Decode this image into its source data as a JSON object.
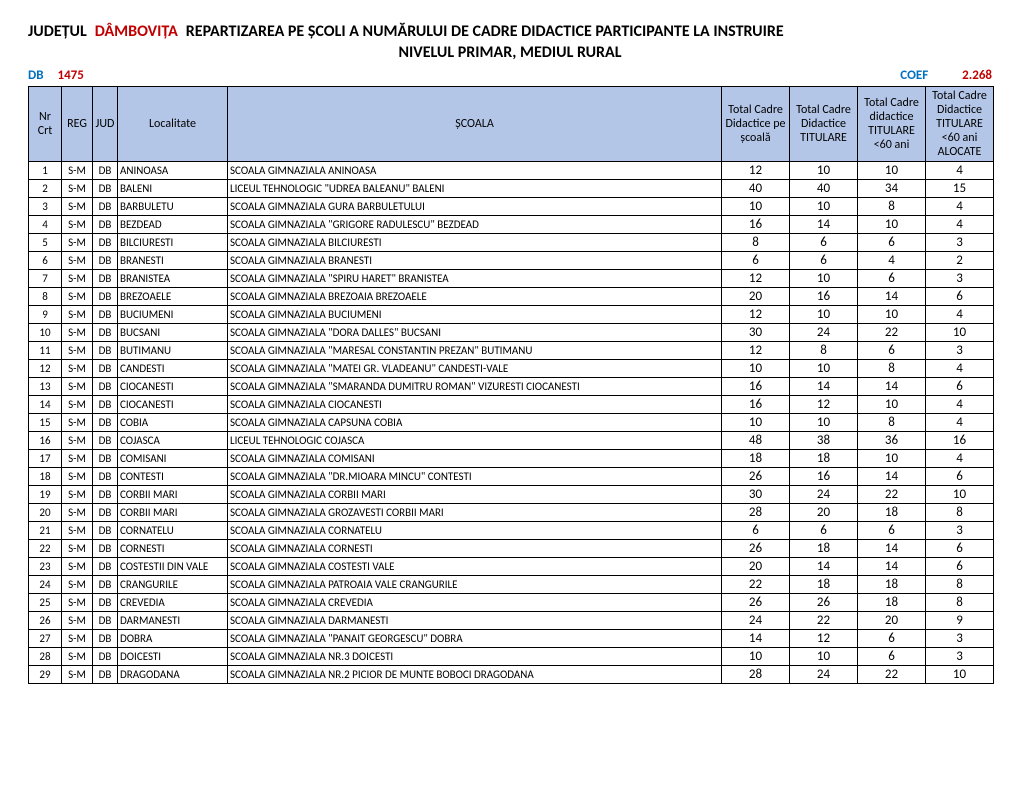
{
  "header": {
    "judetul_label": "JUDEȚUL",
    "county": "DÂMBOVIȚA",
    "title_main": "REPARTIZAREA PE ȘCOLI A NUMĂRULUI DE CADRE DIDACTICE PARTICIPANTE LA INSTRUIRE",
    "subtitle": "NIVELUL PRIMAR, MEDIUL RURAL",
    "code": "DB",
    "code_num": "1475",
    "coef_label": "COEF",
    "coef_val": "2.268"
  },
  "columns": {
    "nr": "Nr Crt",
    "reg": "REG",
    "jud": "JUD",
    "loc": "Localitate",
    "scoala": "ȘCOALA",
    "v1": "Total Cadre Didactice pe școală",
    "v2": "Total Cadre Didactice TITULARE",
    "v3": "Total Cadre didactice TITULARE <60 ani",
    "v4": "Total Cadre Didactice TITULARE <60 ani ALOCATE"
  },
  "rows": [
    {
      "nr": "1",
      "reg": "S-M",
      "jud": "DB",
      "loc": "ANINOASA",
      "scoala": "SCOALA GIMNAZIALA ANINOASA",
      "v1": "12",
      "v2": "10",
      "v3": "10",
      "v4": "4"
    },
    {
      "nr": "2",
      "reg": "S-M",
      "jud": "DB",
      "loc": "BALENI",
      "scoala": "LICEUL TEHNOLOGIC \"UDREA BALEANU\" BALENI",
      "v1": "40",
      "v2": "40",
      "v3": "34",
      "v4": "15"
    },
    {
      "nr": "3",
      "reg": "S-M",
      "jud": "DB",
      "loc": "BARBULETU",
      "scoala": "SCOALA GIMNAZIALA GURA BARBULETULUI",
      "v1": "10",
      "v2": "10",
      "v3": "8",
      "v4": "4"
    },
    {
      "nr": "4",
      "reg": "S-M",
      "jud": "DB",
      "loc": "BEZDEAD",
      "scoala": "SCOALA GIMNAZIALA \"GRIGORE RADULESCU\" BEZDEAD",
      "v1": "16",
      "v2": "14",
      "v3": "10",
      "v4": "4"
    },
    {
      "nr": "5",
      "reg": "S-M",
      "jud": "DB",
      "loc": "BILCIURESTI",
      "scoala": "SCOALA GIMNAZIALA BILCIURESTI",
      "v1": "8",
      "v2": "6",
      "v3": "6",
      "v4": "3"
    },
    {
      "nr": "6",
      "reg": "S-M",
      "jud": "DB",
      "loc": "BRANESTI",
      "scoala": "SCOALA GIMNAZIALA BRANESTI",
      "v1": "6",
      "v2": "6",
      "v3": "4",
      "v4": "2"
    },
    {
      "nr": "7",
      "reg": "S-M",
      "jud": "DB",
      "loc": "BRANISTEA",
      "scoala": "SCOALA GIMNAZIALA \"SPIRU HARET\" BRANISTEA",
      "v1": "12",
      "v2": "10",
      "v3": "6",
      "v4": "3"
    },
    {
      "nr": "8",
      "reg": "S-M",
      "jud": "DB",
      "loc": "BREZOAELE",
      "scoala": "SCOALA GIMNAZIALA BREZOAIA BREZOAELE",
      "v1": "20",
      "v2": "16",
      "v3": "14",
      "v4": "6"
    },
    {
      "nr": "9",
      "reg": "S-M",
      "jud": "DB",
      "loc": "BUCIUMENI",
      "scoala": "SCOALA GIMNAZIALA BUCIUMENI",
      "v1": "12",
      "v2": "10",
      "v3": "10",
      "v4": "4"
    },
    {
      "nr": "10",
      "reg": "S-M",
      "jud": "DB",
      "loc": "BUCSANI",
      "scoala": "SCOALA GIMNAZIALA \"DORA DALLES\" BUCSANI",
      "v1": "30",
      "v2": "24",
      "v3": "22",
      "v4": "10"
    },
    {
      "nr": "11",
      "reg": "S-M",
      "jud": "DB",
      "loc": "BUTIMANU",
      "scoala": "SCOALA GIMNAZIALA \"MARESAL CONSTANTIN PREZAN\" BUTIMANU",
      "v1": "12",
      "v2": "8",
      "v3": "6",
      "v4": "3"
    },
    {
      "nr": "12",
      "reg": "S-M",
      "jud": "DB",
      "loc": "CANDESTI",
      "scoala": "SCOALA GIMNAZIALA \"MATEI GR. VLADEANU\" CANDESTI-VALE",
      "v1": "10",
      "v2": "10",
      "v3": "8",
      "v4": "4"
    },
    {
      "nr": "13",
      "reg": "S-M",
      "jud": "DB",
      "loc": "CIOCANESTI",
      "scoala": "SCOALA GIMNAZIALA \"SMARANDA DUMITRU ROMAN\" VIZURESTI CIOCANESTI",
      "v1": "16",
      "v2": "14",
      "v3": "14",
      "v4": "6"
    },
    {
      "nr": "14",
      "reg": "S-M",
      "jud": "DB",
      "loc": "CIOCANESTI",
      "scoala": "SCOALA GIMNAZIALA CIOCANESTI",
      "v1": "16",
      "v2": "12",
      "v3": "10",
      "v4": "4"
    },
    {
      "nr": "15",
      "reg": "S-M",
      "jud": "DB",
      "loc": "COBIA",
      "scoala": "SCOALA GIMNAZIALA CAPSUNA COBIA",
      "v1": "10",
      "v2": "10",
      "v3": "8",
      "v4": "4"
    },
    {
      "nr": "16",
      "reg": "S-M",
      "jud": "DB",
      "loc": "COJASCA",
      "scoala": "LICEUL TEHNOLOGIC COJASCA",
      "v1": "48",
      "v2": "38",
      "v3": "36",
      "v4": "16"
    },
    {
      "nr": "17",
      "reg": "S-M",
      "jud": "DB",
      "loc": "COMISANI",
      "scoala": "SCOALA GIMNAZIALA COMISANI",
      "v1": "18",
      "v2": "18",
      "v3": "10",
      "v4": "4"
    },
    {
      "nr": "18",
      "reg": "S-M",
      "jud": "DB",
      "loc": "CONTESTI",
      "scoala": "SCOALA GIMNAZIALA \"DR.MIOARA MINCU\" CONTESTI",
      "v1": "26",
      "v2": "16",
      "v3": "14",
      "v4": "6"
    },
    {
      "nr": "19",
      "reg": "S-M",
      "jud": "DB",
      "loc": "CORBII MARI",
      "scoala": "SCOALA GIMNAZIALA CORBII MARI",
      "v1": "30",
      "v2": "24",
      "v3": "22",
      "v4": "10"
    },
    {
      "nr": "20",
      "reg": "S-M",
      "jud": "DB",
      "loc": "CORBII MARI",
      "scoala": "SCOALA GIMNAZIALA GROZAVESTI CORBII MARI",
      "v1": "28",
      "v2": "20",
      "v3": "18",
      "v4": "8"
    },
    {
      "nr": "21",
      "reg": "S-M",
      "jud": "DB",
      "loc": "CORNATELU",
      "scoala": "SCOALA GIMNAZIALA CORNATELU",
      "v1": "6",
      "v2": "6",
      "v3": "6",
      "v4": "3"
    },
    {
      "nr": "22",
      "reg": "S-M",
      "jud": "DB",
      "loc": "CORNESTI",
      "scoala": "SCOALA GIMNAZIALA CORNESTI",
      "v1": "26",
      "v2": "18",
      "v3": "14",
      "v4": "6"
    },
    {
      "nr": "23",
      "reg": "S-M",
      "jud": "DB",
      "loc": "COSTESTII DIN VALE",
      "scoala": "SCOALA GIMNAZIALA COSTESTI VALE",
      "v1": "20",
      "v2": "14",
      "v3": "14",
      "v4": "6"
    },
    {
      "nr": "24",
      "reg": "S-M",
      "jud": "DB",
      "loc": "CRANGURILE",
      "scoala": "SCOALA GIMNAZIALA PATROAIA VALE CRANGURILE",
      "v1": "22",
      "v2": "18",
      "v3": "18",
      "v4": "8"
    },
    {
      "nr": "25",
      "reg": "S-M",
      "jud": "DB",
      "loc": "CREVEDIA",
      "scoala": "SCOALA GIMNAZIALA CREVEDIA",
      "v1": "26",
      "v2": "26",
      "v3": "18",
      "v4": "8"
    },
    {
      "nr": "26",
      "reg": "S-M",
      "jud": "DB",
      "loc": "DARMANESTI",
      "scoala": "SCOALA GIMNAZIALA DARMANESTI",
      "v1": "24",
      "v2": "22",
      "v3": "20",
      "v4": "9"
    },
    {
      "nr": "27",
      "reg": "S-M",
      "jud": "DB",
      "loc": "DOBRA",
      "scoala": "SCOALA GIMNAZIALA \"PANAIT GEORGESCU\" DOBRA",
      "v1": "14",
      "v2": "12",
      "v3": "6",
      "v4": "3"
    },
    {
      "nr": "28",
      "reg": "S-M",
      "jud": "DB",
      "loc": "DOICESTI",
      "scoala": "SCOALA GIMNAZIALA NR.3 DOICESTI",
      "v1": "10",
      "v2": "10",
      "v3": "6",
      "v4": "3"
    },
    {
      "nr": "29",
      "reg": "S-M",
      "jud": "DB",
      "loc": "DRAGODANA",
      "scoala": "SCOALA GIMNAZIALA NR.2 PICIOR DE MUNTE BOBOCI DRAGODANA",
      "v1": "28",
      "v2": "24",
      "v3": "22",
      "v4": "10"
    }
  ],
  "colors": {
    "header_bg": "#b4c6e7",
    "red": "#c00000",
    "blue": "#0070c0",
    "border": "#000000"
  }
}
